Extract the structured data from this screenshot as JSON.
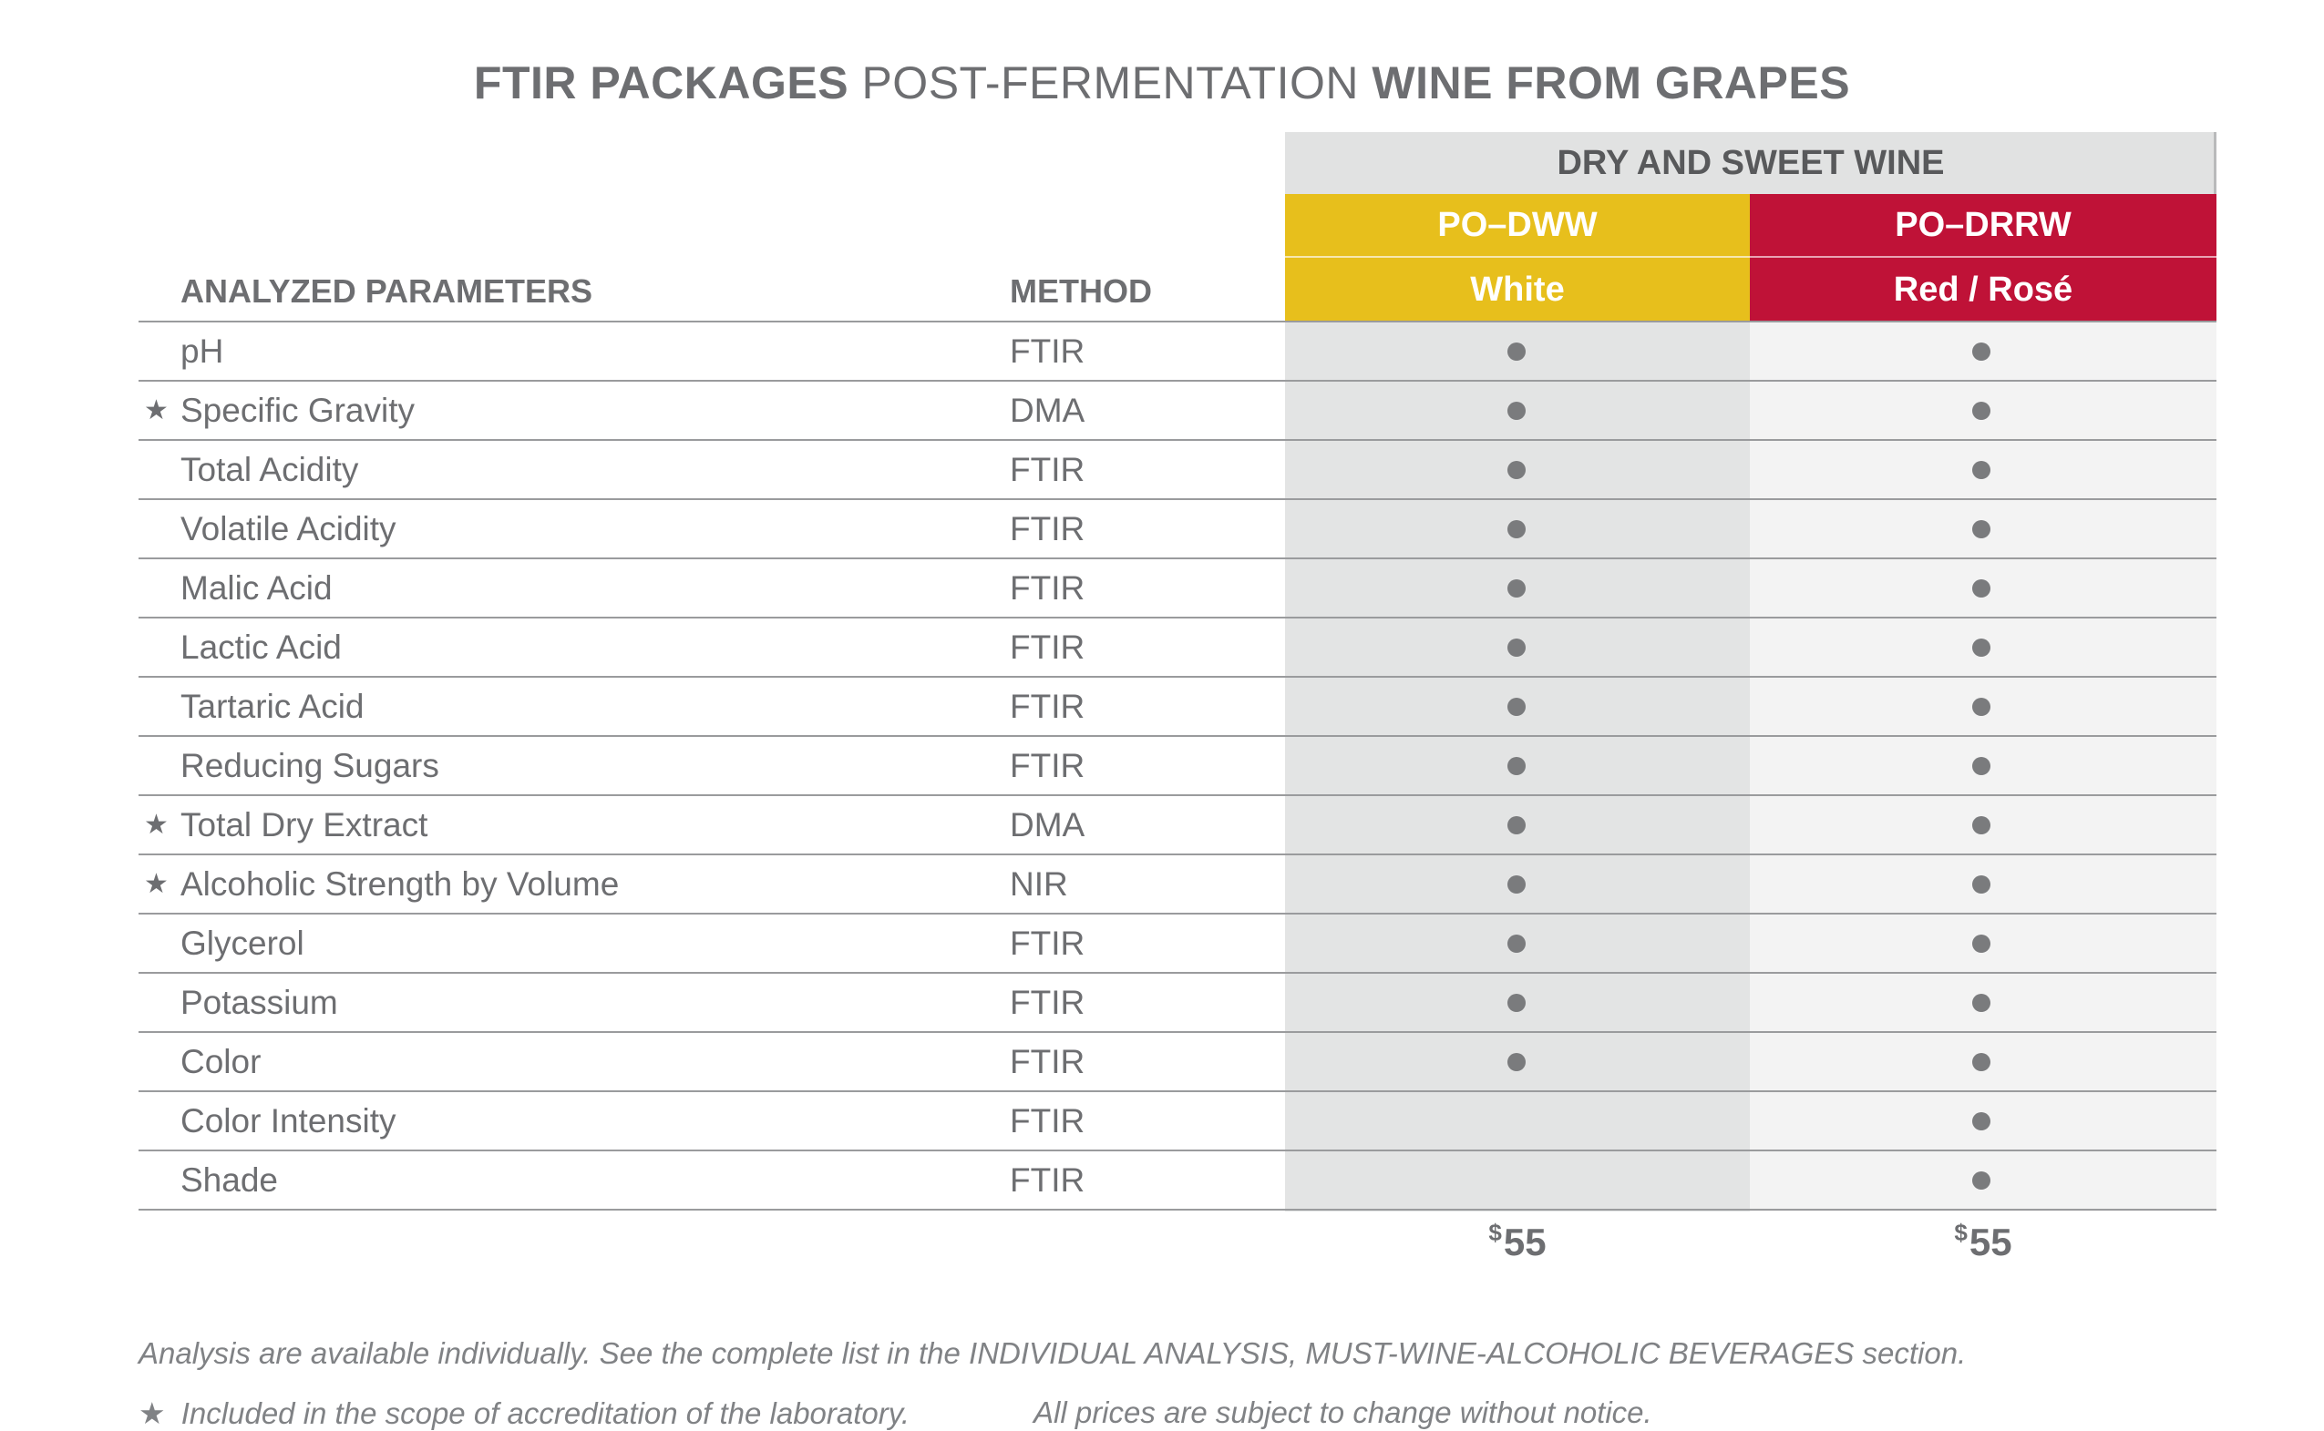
{
  "title": {
    "part1": "FTIR PACKAGES",
    "part2": "POST-FERMENTATION",
    "part3": "WINE FROM GRAPES"
  },
  "table": {
    "group_header": "DRY AND SWEET WINE",
    "col_param_header": "ANALYZED PARAMETERS",
    "col_method_header": "METHOD",
    "packages": [
      {
        "code": "PO–DWW",
        "type": "White",
        "color": "#e7bf1c",
        "price_symbol": "$",
        "price": "55"
      },
      {
        "code": "PO–DRRW",
        "type": "Red / Rosé",
        "color": "#bf1237",
        "price_symbol": "$",
        "price": "55"
      }
    ],
    "star_symbol": "★",
    "rows": [
      {
        "param": "pH",
        "method": "FTIR",
        "starred": false,
        "white": true,
        "red": true
      },
      {
        "param": "Specific Gravity",
        "method": "DMA",
        "starred": true,
        "white": true,
        "red": true
      },
      {
        "param": "Total Acidity",
        "method": "FTIR",
        "starred": false,
        "white": true,
        "red": true
      },
      {
        "param": "Volatile Acidity",
        "method": "FTIR",
        "starred": false,
        "white": true,
        "red": true
      },
      {
        "param": "Malic Acid",
        "method": "FTIR",
        "starred": false,
        "white": true,
        "red": true
      },
      {
        "param": "Lactic Acid",
        "method": "FTIR",
        "starred": false,
        "white": true,
        "red": true
      },
      {
        "param": "Tartaric Acid",
        "method": "FTIR",
        "starred": false,
        "white": true,
        "red": true
      },
      {
        "param": "Reducing Sugars",
        "method": "FTIR",
        "starred": false,
        "white": true,
        "red": true
      },
      {
        "param": "Total Dry Extract",
        "method": "DMA",
        "starred": true,
        "white": true,
        "red": true
      },
      {
        "param": "Alcoholic Strength by Volume",
        "method": "NIR",
        "starred": true,
        "white": true,
        "red": true
      },
      {
        "param": "Glycerol",
        "method": "FTIR",
        "starred": false,
        "white": true,
        "red": true
      },
      {
        "param": "Potassium",
        "method": "FTIR",
        "starred": false,
        "white": true,
        "red": true
      },
      {
        "param": "Color",
        "method": "FTIR",
        "starred": false,
        "white": true,
        "red": true
      },
      {
        "param": "Color Intensity",
        "method": "FTIR",
        "starred": false,
        "white": false,
        "red": true
      },
      {
        "param": "Shade",
        "method": "FTIR",
        "starred": false,
        "white": false,
        "red": true
      }
    ]
  },
  "notes": {
    "line1": "Analysis are available individually. See the complete list in the INDIVIDUAL ANALYSIS, MUST-WINE-ALCOHOLIC BEVERAGES section.",
    "star_symbol": "★",
    "line2": "Included in the scope of accreditation of the laboratory.",
    "line3": "All prices are subject to change without notice."
  }
}
